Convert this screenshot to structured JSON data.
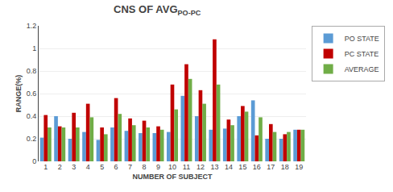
{
  "chart_data": {
    "type": "bar",
    "title": "CNS OF AVG",
    "subtitle": "PO-PC",
    "xlabel": "NUMBER OF SUBJECT",
    "ylabel": "RANGE(%)",
    "categories": [
      "1",
      "2",
      "3",
      "4",
      "5",
      "6",
      "7",
      "8",
      "9",
      "10",
      "11",
      "12",
      "13",
      "14",
      "15",
      "16",
      "17",
      "18",
      "19"
    ],
    "series": [
      {
        "name": "PO STATE",
        "color": "#5B9BD5",
        "values": [
          0.21,
          0.4,
          0.2,
          0.26,
          0.19,
          0.3,
          0.27,
          0.25,
          0.25,
          0.26,
          0.58,
          0.4,
          0.28,
          0.29,
          0.4,
          0.54,
          0.2,
          0.2,
          0.28
        ]
      },
      {
        "name": "PC STATE",
        "color": "#C00000",
        "values": [
          0.41,
          0.31,
          0.43,
          0.51,
          0.3,
          0.56,
          0.38,
          0.36,
          0.31,
          0.68,
          0.86,
          0.63,
          1.08,
          0.37,
          0.49,
          0.23,
          0.33,
          0.24,
          0.28
        ]
      },
      {
        "name": "AVERAGE",
        "color": "#70AD47",
        "values": [
          0.3,
          0.3,
          0.3,
          0.39,
          0.24,
          0.42,
          0.32,
          0.3,
          0.28,
          0.46,
          0.73,
          0.51,
          0.68,
          0.32,
          0.44,
          0.39,
          0.26,
          0.26,
          0.28
        ]
      }
    ],
    "ylim": [
      0,
      1.2
    ],
    "yticks": [
      0,
      0.2,
      0.4,
      0.6,
      0.8,
      1,
      1.2
    ],
    "grid": true,
    "legend": "right"
  }
}
